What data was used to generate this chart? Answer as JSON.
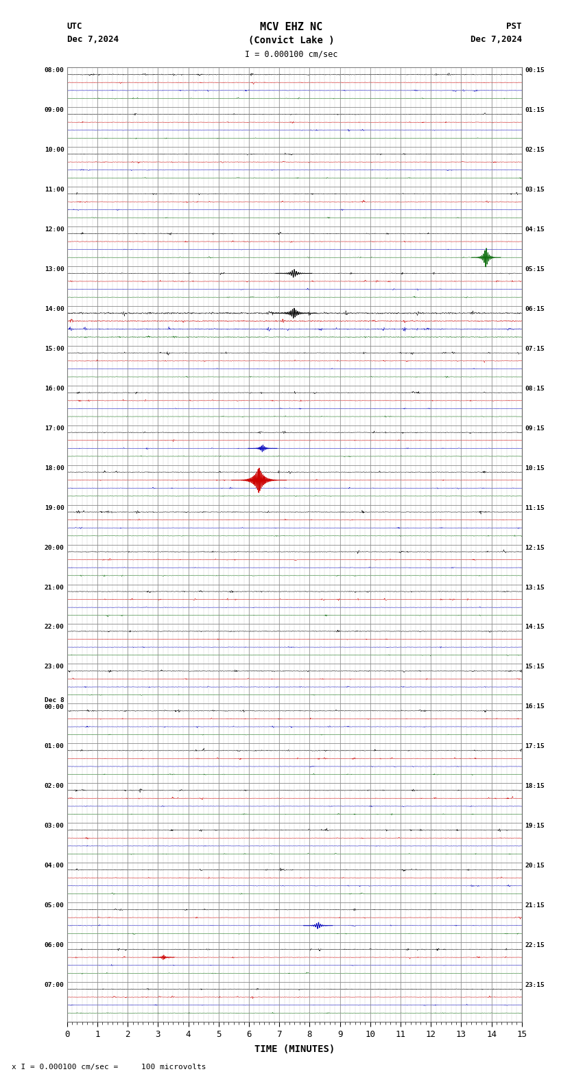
{
  "title_line1": "MCV EHZ NC",
  "title_line2": "(Convict Lake )",
  "title_scale": "I = 0.000100 cm/sec",
  "left_header_line1": "UTC",
  "left_header_line2": "Dec 7,2024",
  "right_header_line1": "PST",
  "right_header_line2": "Dec 7,2024",
  "bottom_label": "TIME (MINUTES)",
  "footnote": "x I = 0.000100 cm/sec =     100 microvolts",
  "xlim": [
    0,
    15
  ],
  "xticks": [
    0,
    1,
    2,
    3,
    4,
    5,
    6,
    7,
    8,
    9,
    10,
    11,
    12,
    13,
    14,
    15
  ],
  "utc_labels": [
    "08:00",
    "09:00",
    "10:00",
    "11:00",
    "12:00",
    "13:00",
    "14:00",
    "15:00",
    "16:00",
    "17:00",
    "18:00",
    "19:00",
    "20:00",
    "21:00",
    "22:00",
    "23:00",
    "Dec 8\n00:00",
    "01:00",
    "02:00",
    "03:00",
    "04:00",
    "05:00",
    "06:00",
    "07:00"
  ],
  "pst_labels": [
    "00:15",
    "01:15",
    "02:15",
    "03:15",
    "04:15",
    "05:15",
    "06:15",
    "07:15",
    "08:15",
    "09:15",
    "10:15",
    "11:15",
    "12:15",
    "13:15",
    "14:15",
    "15:15",
    "16:15",
    "17:15",
    "18:15",
    "19:15",
    "20:15",
    "21:15",
    "22:15",
    "23:15"
  ],
  "n_rows": 24,
  "bg_color": "#ffffff",
  "grid_color": "#888888",
  "seed": 42,
  "row_colors": [
    "black",
    "red",
    "blue",
    "green"
  ],
  "color_offsets": [
    0.82,
    0.62,
    0.42,
    0.22
  ],
  "base_amp": 0.018,
  "row_amp_multipliers": [
    1.2,
    1.0,
    1.0,
    1.0,
    1.0,
    1.0,
    2.5,
    1.0,
    1.0,
    1.0,
    1.0,
    1.0,
    1.0,
    1.0,
    1.0,
    1.0,
    1.0,
    1.0,
    1.0,
    1.0,
    1.0,
    1.0,
    1.0,
    1.0
  ],
  "color_amp_multipliers": [
    1.0,
    0.7,
    0.6,
    0.5
  ],
  "spikes": [
    {
      "row": 10,
      "color_idx": 1,
      "x": 6.33,
      "amp": 0.35,
      "decay": 0.15,
      "freq": 25
    },
    {
      "row": 4,
      "color_idx": 3,
      "x": 13.82,
      "amp": 0.28,
      "decay": 0.08,
      "freq": 20
    },
    {
      "row": 5,
      "color_idx": 0,
      "x": 7.48,
      "amp": 0.12,
      "decay": 0.1,
      "freq": 15
    },
    {
      "row": 6,
      "color_idx": 0,
      "x": 7.48,
      "amp": 0.14,
      "decay": 0.12,
      "freq": 18
    },
    {
      "row": 9,
      "color_idx": 2,
      "x": 6.45,
      "amp": 0.1,
      "decay": 0.08,
      "freq": 20
    },
    {
      "row": 21,
      "color_idx": 2,
      "x": 8.28,
      "amp": 0.1,
      "decay": 0.08,
      "freq": 15
    },
    {
      "row": 22,
      "color_idx": 1,
      "x": 3.18,
      "amp": 0.07,
      "decay": 0.06,
      "freq": 20
    }
  ]
}
